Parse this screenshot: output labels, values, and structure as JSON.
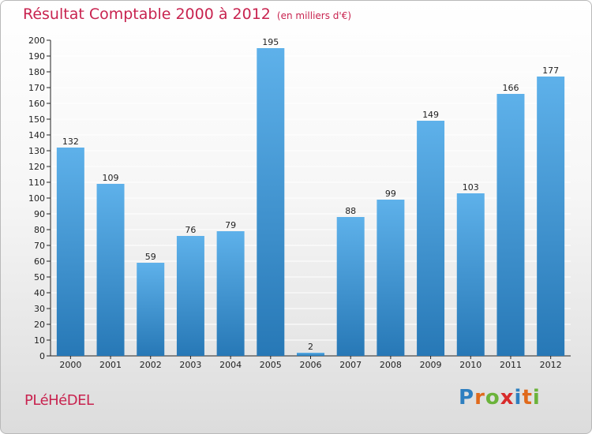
{
  "title": "Résultat Comptable 2000 à 2012",
  "unit": "(en milliers d'€)",
  "commune": "PLéHéDEL",
  "logo": {
    "letters": [
      "P",
      "r",
      "o",
      "x",
      "i",
      "t",
      "i"
    ],
    "colors": [
      "#2e7fc0",
      "#e06a1c",
      "#6bb33a",
      "#d82b2b",
      "#2e7fc0",
      "#e06a1c",
      "#6bb33a"
    ]
  },
  "colors": {
    "bar_top": "#5eb1ea",
    "bar_bottom": "#2778b6",
    "grid": "#ffffff",
    "axis": "#222222"
  },
  "chart_data": {
    "type": "bar",
    "title": "Résultat Comptable 2000 à 2012",
    "ylabel": "en milliers d'€",
    "categories": [
      "2000",
      "2001",
      "2002",
      "2003",
      "2004",
      "2005",
      "2006",
      "2007",
      "2008",
      "2009",
      "2010",
      "2011",
      "2012"
    ],
    "values": [
      132,
      109,
      59,
      76,
      79,
      195,
      2,
      88,
      99,
      149,
      103,
      166,
      177
    ],
    "ylim": [
      0,
      200
    ],
    "ytick_step": 10,
    "grid": true
  }
}
